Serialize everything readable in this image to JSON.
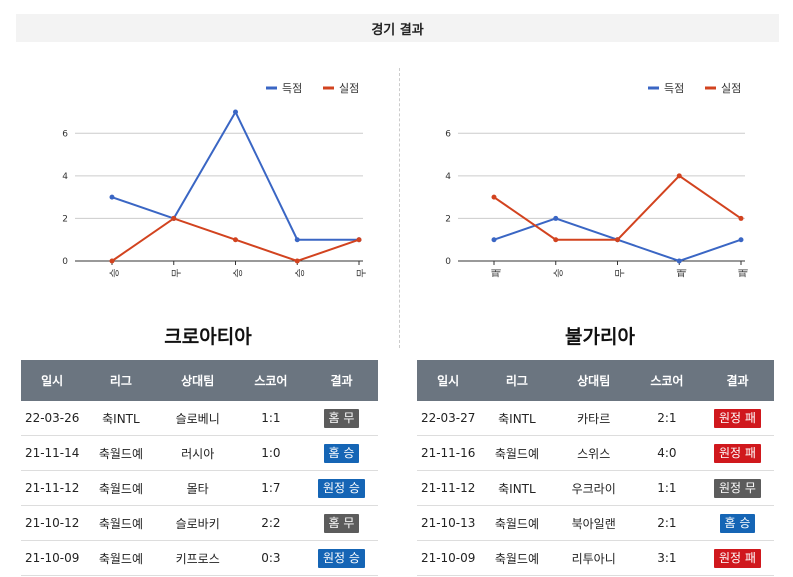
{
  "header": {
    "title": "경기 결과"
  },
  "colors": {
    "scored": "#3a66c4",
    "conceded": "#d2431f",
    "draw": "#5c5c5c",
    "win": "#1565b5",
    "loss": "#d0181d"
  },
  "teams": [
    {
      "name": "크로아티아",
      "chart_data": {
        "type": "line",
        "categories": [
          "승",
          "무",
          "승",
          "승",
          "무"
        ],
        "ylim": [
          0,
          7
        ],
        "yticks": [
          0,
          2,
          4,
          6
        ],
        "legend_position": "top-right",
        "grid": true,
        "series": [
          {
            "name": "득점",
            "values": [
              3,
              2,
              7,
              1,
              1
            ]
          },
          {
            "name": "실점",
            "values": [
              0,
              2,
              1,
              0,
              1
            ]
          }
        ]
      },
      "table": {
        "headers": [
          "일시",
          "리그",
          "상대팀",
          "스코어",
          "결과"
        ],
        "rows": [
          {
            "date": "22-03-26",
            "league": "축INTL",
            "opponent": "슬로베니",
            "score": "1:1",
            "result": "홈 무",
            "kind": "draw"
          },
          {
            "date": "21-11-14",
            "league": "축월드예",
            "opponent": "러시아",
            "score": "1:0",
            "result": "홈 승",
            "kind": "win"
          },
          {
            "date": "21-11-12",
            "league": "축월드예",
            "opponent": "몰타",
            "score": "1:7",
            "result": "원정 승",
            "kind": "win"
          },
          {
            "date": "21-10-12",
            "league": "축월드예",
            "opponent": "슬로바키",
            "score": "2:2",
            "result": "홈 무",
            "kind": "draw"
          },
          {
            "date": "21-10-09",
            "league": "축월드예",
            "opponent": "키프로스",
            "score": "0:3",
            "result": "원정 승",
            "kind": "win"
          }
        ]
      }
    },
    {
      "name": "불가리아",
      "chart_data": {
        "type": "line",
        "categories": [
          "패",
          "승",
          "무",
          "패",
          "패"
        ],
        "ylim": [
          0,
          7
        ],
        "yticks": [
          0,
          2,
          4,
          6
        ],
        "legend_position": "top-right",
        "grid": true,
        "series": [
          {
            "name": "득점",
            "values": [
              1,
              2,
              1,
              0,
              1
            ]
          },
          {
            "name": "실점",
            "values": [
              3,
              1,
              1,
              4,
              2
            ]
          }
        ]
      },
      "table": {
        "headers": [
          "일시",
          "리그",
          "상대팀",
          "스코어",
          "결과"
        ],
        "rows": [
          {
            "date": "22-03-27",
            "league": "축INTL",
            "opponent": "카타르",
            "score": "2:1",
            "result": "원정 패",
            "kind": "loss"
          },
          {
            "date": "21-11-16",
            "league": "축월드예",
            "opponent": "스위스",
            "score": "4:0",
            "result": "원정 패",
            "kind": "loss"
          },
          {
            "date": "21-11-12",
            "league": "축INTL",
            "opponent": "우크라이",
            "score": "1:1",
            "result": "원정 무",
            "kind": "draw"
          },
          {
            "date": "21-10-13",
            "league": "축월드예",
            "opponent": "북아일랜",
            "score": "2:1",
            "result": "홈 승",
            "kind": "win"
          },
          {
            "date": "21-10-09",
            "league": "축월드예",
            "opponent": "리투아니",
            "score": "3:1",
            "result": "원정 패",
            "kind": "loss"
          }
        ]
      }
    }
  ]
}
